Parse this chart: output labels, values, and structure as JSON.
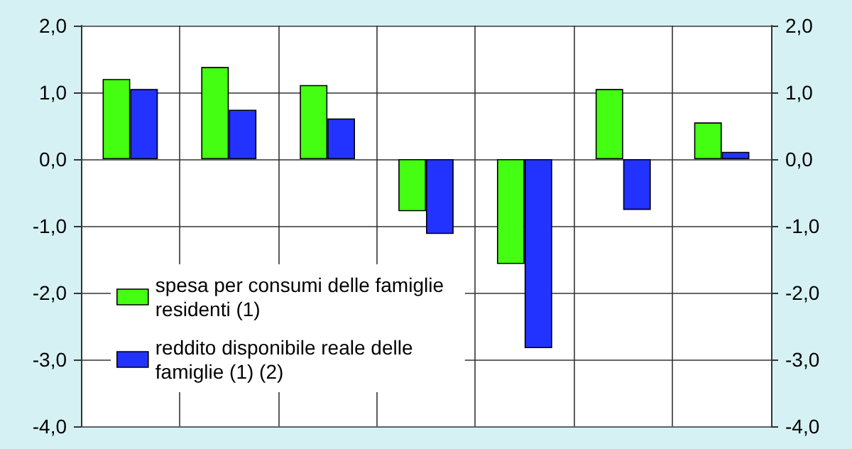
{
  "chart_data": {
    "type": "bar",
    "categories": [
      null,
      null,
      null,
      null,
      null,
      null,
      null
    ],
    "series": [
      {
        "name": "spesa per consumi delle famiglie residenti (1)",
        "color": "#44ff11",
        "values": [
          1.2,
          1.38,
          1.11,
          -0.78,
          -1.57,
          1.05,
          0.55
        ]
      },
      {
        "name": "reddito disponibile reale delle famiglie (1) (2)",
        "color": "#2233ff",
        "values": [
          1.05,
          0.74,
          0.61,
          -1.12,
          -2.83,
          -0.76,
          0.11
        ]
      }
    ],
    "ylim": [
      -4,
      2
    ],
    "yticks": [
      {
        "value": -4,
        "label": "-4,0"
      },
      {
        "value": -3,
        "label": "-3,0"
      },
      {
        "value": -2,
        "label": "-2,0"
      },
      {
        "value": -1,
        "label": "-1,0"
      },
      {
        "value": 0,
        "label": "0,0"
      },
      {
        "value": 1,
        "label": "1,0"
      },
      {
        "value": 2,
        "label": "2,0"
      }
    ],
    "y2lim": [
      -4,
      2
    ],
    "y2ticks": [
      {
        "value": -4,
        "label": "-4,0"
      },
      {
        "value": -3,
        "label": "-3,0"
      },
      {
        "value": -2,
        "label": "-2,0"
      },
      {
        "value": -1,
        "label": "-1,0"
      },
      {
        "value": 0,
        "label": "0,0"
      },
      {
        "value": 1,
        "label": "1,0"
      },
      {
        "value": 2,
        "label": "2,0"
      }
    ],
    "grid": true,
    "legend": "bottom left"
  }
}
